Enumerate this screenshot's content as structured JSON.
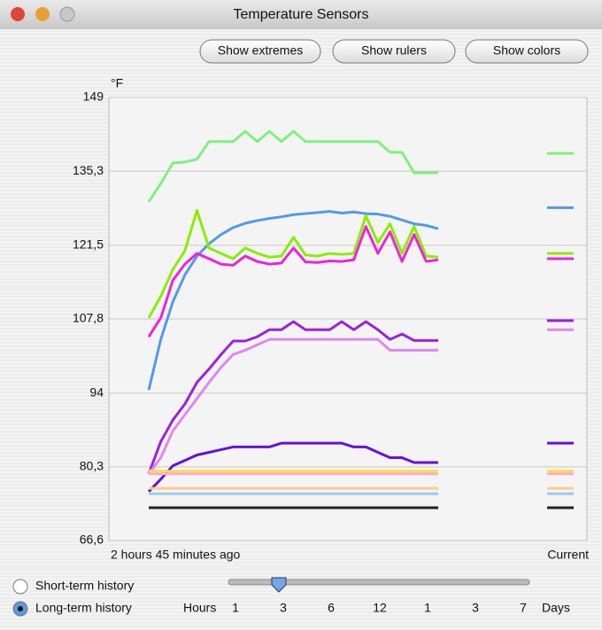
{
  "window": {
    "title": "Temperature Sensors"
  },
  "buttons": [
    "Show extremes",
    "Show rulers",
    "Show colors"
  ],
  "chart_data": {
    "type": "line",
    "y_unit": "°F",
    "ylim": [
      66.6,
      149
    ],
    "yticks": [
      149,
      {
        "value": 135.3,
        "label": "135,3"
      },
      {
        "value": 121.5,
        "label": "121,5"
      },
      {
        "value": 107.8,
        "label": "107,8"
      },
      94,
      {
        "value": 80.3,
        "label": "80,3"
      },
      {
        "value": 66.6,
        "label": "66,6"
      }
    ],
    "grid": true,
    "x_start_label": "2 hours 45 minutes  ago",
    "x_current_label": "Current",
    "series": [
      {
        "color": "#7ef07e",
        "values": [
          129.6,
          133,
          136.8,
          137,
          137.5,
          140.8,
          140.8,
          140.8,
          142.7,
          140.8,
          142.7,
          140.8,
          142.7,
          140.8,
          140.8,
          140.8,
          140.8,
          140.8,
          140.8,
          140.8,
          138.8,
          138.8,
          135,
          135,
          135
        ],
        "current": 138.6
      },
      {
        "color": "#5599e8",
        "values": [
          94.6,
          104,
          111,
          116,
          119.5,
          121.8,
          123.5,
          124.8,
          125.6,
          126.1,
          126.5,
          126.8,
          127.2,
          127.4,
          127.6,
          127.8,
          127.5,
          127.7,
          127.4,
          127.3,
          126.9,
          126.2,
          125.5,
          125.2,
          124.6
        ],
        "current": 128.5
      },
      {
        "color": "#88ee00",
        "values": [
          108,
          112,
          117,
          120.5,
          128,
          121,
          120,
          119,
          121,
          120,
          119.3,
          119.5,
          123,
          119.7,
          119.5,
          120,
          119.8,
          120,
          127,
          122,
          125.5,
          120,
          125,
          119.5,
          119.3
        ],
        "current": 120
      },
      {
        "color": "#ee22dd",
        "values": [
          104.5,
          108,
          115,
          118,
          120,
          119,
          118,
          117.8,
          119.5,
          118.5,
          118,
          118.2,
          121,
          118.4,
          118.3,
          118.6,
          118.5,
          118.8,
          125,
          120,
          124,
          118.5,
          123.5,
          118.5,
          118.8
        ],
        "current": 119
      },
      {
        "color": "#9922dd",
        "values": [
          79,
          85,
          89,
          92,
          96,
          98.5,
          101.2,
          103.7,
          103.7,
          104.5,
          105.8,
          105.8,
          107.3,
          105.8,
          105.8,
          105.8,
          107.3,
          105.8,
          107.3,
          105.8,
          104,
          105,
          103.8,
          103.8,
          103.8
        ],
        "current": 107.5
      },
      {
        "color": "#dd88ee",
        "values": [
          79,
          82,
          87,
          90,
          93,
          96,
          98.8,
          101.2,
          102,
          103,
          104,
          104,
          104,
          104,
          104,
          104,
          104,
          104,
          104,
          104,
          102,
          102,
          102,
          102,
          102
        ],
        "current": 105.8
      },
      {
        "color": "#6611dd",
        "values": [
          75.7,
          78,
          80.5,
          81.5,
          82.5,
          83,
          83.5,
          84,
          84,
          84,
          84,
          84.7,
          84.7,
          84.7,
          84.7,
          84.7,
          84.7,
          84,
          84,
          83,
          82,
          82,
          81.1,
          81.1,
          81.1
        ],
        "current": 84.7
      },
      {
        "color": "#ffdd44",
        "values": [
          79.5,
          79.5
        ],
        "current": 79.5
      },
      {
        "color": "#ffaacc",
        "values": [
          79,
          79
        ],
        "current": 79
      },
      {
        "color": "#ffcc88",
        "values": [
          76.3,
          76.3
        ],
        "current": 76.3
      },
      {
        "color": "#99ccee",
        "values": [
          75.3,
          75.3
        ],
        "current": 75.3
      },
      {
        "color": "#222222",
        "values": [
          72.7,
          72.7
        ],
        "current": 72.7
      }
    ]
  },
  "history": {
    "options": [
      "Short-term history",
      "Long-term history"
    ],
    "scale_start": "Hours",
    "scale_labels": [
      "1",
      "3",
      "6",
      "12",
      "1",
      "3",
      "7"
    ],
    "scale_end": "Days"
  }
}
